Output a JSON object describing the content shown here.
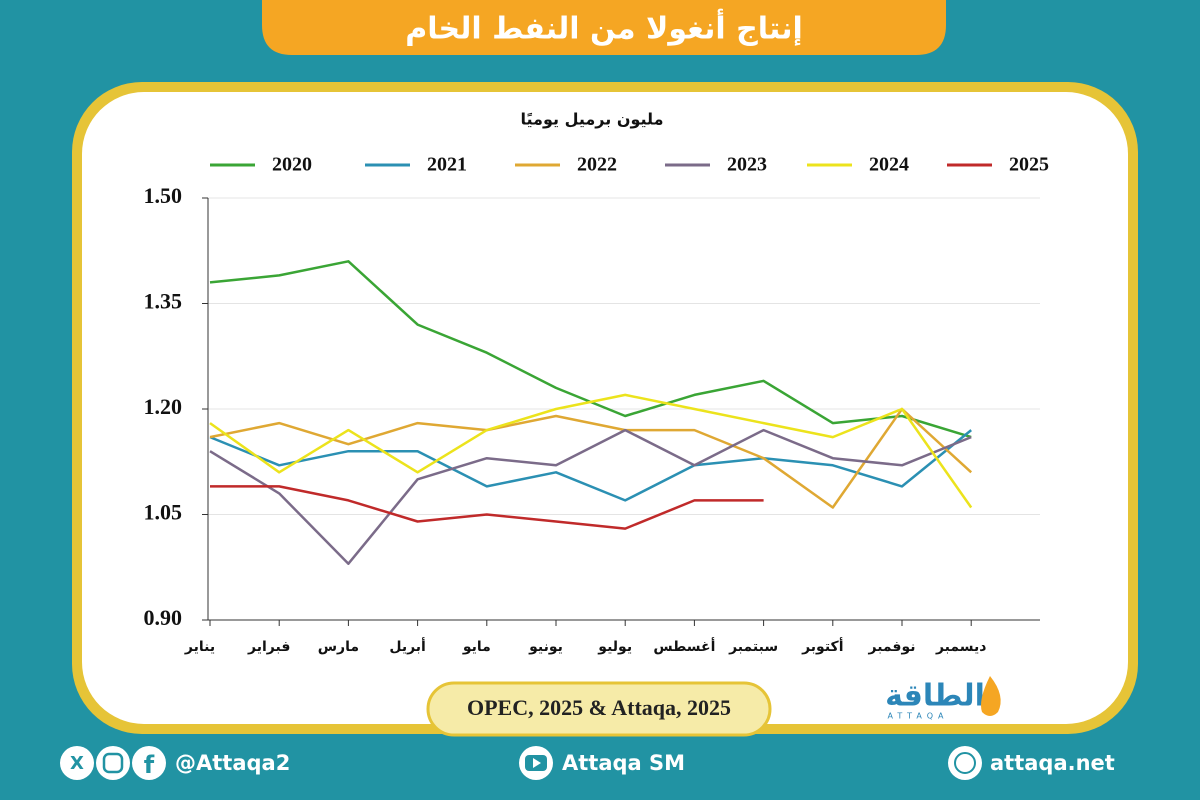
{
  "chart_data": {
    "type": "line",
    "title": "إنتاج أنغولا من النفط الخام",
    "y_label": "مليون برميل يوميًا",
    "source": "OPEC, 2025 & Attaqa, 2025",
    "categories": [
      "يناير",
      "فبراير",
      "مارس",
      "أبريل",
      "مايو",
      "يونيو",
      "يوليو",
      "أغسطس",
      "سبتمبر",
      "أكتوبر",
      "نوفمبر",
      "ديسمبر"
    ],
    "series": [
      {
        "name": "2020",
        "color": "#3aa535",
        "values": [
          1.38,
          1.39,
          1.41,
          1.32,
          1.28,
          1.23,
          1.19,
          1.22,
          1.24,
          1.18,
          1.19,
          1.16
        ]
      },
      {
        "name": "2021",
        "color": "#2b90b3",
        "values": [
          1.16,
          1.12,
          1.14,
          1.14,
          1.09,
          1.11,
          1.07,
          1.12,
          1.13,
          1.12,
          1.09,
          1.17
        ]
      },
      {
        "name": "2022",
        "color": "#dfa833",
        "values": [
          1.16,
          1.18,
          1.15,
          1.18,
          1.17,
          1.19,
          1.17,
          1.17,
          1.13,
          1.06,
          1.2,
          1.11
        ]
      },
      {
        "name": "2023",
        "color": "#7b6b89",
        "values": [
          1.14,
          1.08,
          0.98,
          1.1,
          1.13,
          1.12,
          1.17,
          1.12,
          1.17,
          1.13,
          1.12,
          1.16
        ]
      },
      {
        "name": "2024",
        "color": "#ece31c",
        "values": [
          1.18,
          1.11,
          1.17,
          1.11,
          1.17,
          1.2,
          1.22,
          1.2,
          1.18,
          1.16,
          1.2,
          1.06
        ]
      },
      {
        "name": "2025",
        "color": "#c02a2a",
        "values": [
          1.09,
          1.09,
          1.07,
          1.04,
          1.05,
          1.04,
          1.03,
          1.07,
          1.07,
          null,
          null,
          null
        ]
      }
    ],
    "ylim": [
      0.9,
      1.5
    ],
    "yticks": [
      {
        "value": 0.9,
        "label": "0.90"
      },
      {
        "value": 1.05,
        "label": "1.05"
      },
      {
        "value": 1.2,
        "label": "1.20"
      },
      {
        "value": 1.35,
        "label": "1.35"
      },
      {
        "value": 1.5,
        "label": "1.50"
      }
    ],
    "grid": true
  },
  "branding": {
    "logo": "الطاقة",
    "logo_sub": "ATTAQA",
    "social": "@Attaqa2",
    "youtube": "Attaqa SM",
    "website": "attaqa.net"
  }
}
